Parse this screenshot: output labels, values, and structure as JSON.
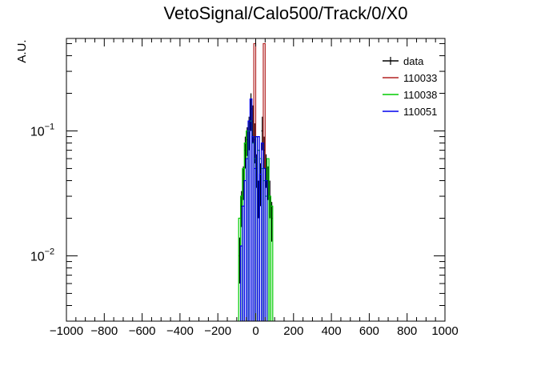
{
  "chart_data": {
    "type": "line",
    "title": "VetoSignal/Calo500/Track/0/X0",
    "xlabel": "",
    "ylabel": "A.U.",
    "xlim": [
      -1000,
      1000
    ],
    "ylim": [
      0.003,
      0.55
    ],
    "yscale": "log",
    "grid": false,
    "legend_position": "top-right",
    "x_ticks": [
      -1000,
      -800,
      -600,
      -400,
      -200,
      0,
      200,
      400,
      600,
      800,
      1000
    ],
    "x_tick_labels": [
      "−1000",
      "−800",
      "−600",
      "−400",
      "−200",
      "0",
      "200",
      "400",
      "600",
      "800",
      "1000"
    ],
    "y_ticks": [
      {
        "value": 0.01,
        "base": "10",
        "exp": "−2"
      },
      {
        "value": 0.1,
        "base": "10",
        "exp": "−1"
      }
    ],
    "bin_width": 10,
    "series": [
      {
        "name": "data",
        "color": "#000000",
        "style": "errorbar",
        "points": [
          {
            "x": -85,
            "y": 0.01,
            "err": 0.004
          },
          {
            "x": -75,
            "y": 0.025,
            "err": 0.008
          },
          {
            "x": -65,
            "y": 0.04,
            "err": 0.012
          },
          {
            "x": -55,
            "y": 0.07,
            "err": 0.02
          },
          {
            "x": -45,
            "y": 0.085,
            "err": 0.022
          },
          {
            "x": -35,
            "y": 0.1,
            "err": 0.03
          },
          {
            "x": -25,
            "y": 0.15,
            "err": 0.05
          },
          {
            "x": -15,
            "y": 0.12,
            "err": 0.04
          },
          {
            "x": -5,
            "y": 0.085,
            "err": 0.03
          },
          {
            "x": 5,
            "y": 0.05,
            "err": 0.015
          },
          {
            "x": 15,
            "y": 0.03,
            "err": 0.01
          },
          {
            "x": 25,
            "y": 0.04,
            "err": 0.015
          },
          {
            "x": 35,
            "y": 0.1,
            "err": 0.03
          },
          {
            "x": 45,
            "y": 0.07,
            "err": 0.02
          },
          {
            "x": 55,
            "y": 0.05,
            "err": 0.015
          },
          {
            "x": 65,
            "y": 0.04,
            "err": 0.012
          },
          {
            "x": 75,
            "y": 0.03,
            "err": 0.01
          },
          {
            "x": 85,
            "y": 0.02,
            "err": 0.007
          }
        ]
      },
      {
        "name": "110033",
        "color": "#b22222",
        "style": "step",
        "bins": [
          {
            "x": -5,
            "y": 0.5
          },
          {
            "x": 45,
            "y": 0.5
          }
        ]
      },
      {
        "name": "110038",
        "color": "#00cc00",
        "style": "step",
        "bins": [
          {
            "x": -85,
            "y": 0.02
          },
          {
            "x": -75,
            "y": 0.03
          },
          {
            "x": -65,
            "y": 0.05
          },
          {
            "x": -55,
            "y": 0.08
          },
          {
            "x": -45,
            "y": 0.1
          },
          {
            "x": -35,
            "y": 0.1
          },
          {
            "x": -25,
            "y": 0.12
          },
          {
            "x": -15,
            "y": 0.08
          },
          {
            "x": -5,
            "y": 0.06
          },
          {
            "x": 5,
            "y": 0.09
          },
          {
            "x": 15,
            "y": 0.07
          },
          {
            "x": 25,
            "y": 0.06
          },
          {
            "x": 35,
            "y": 0.05
          },
          {
            "x": 45,
            "y": 0.04
          },
          {
            "x": 55,
            "y": 0.03
          },
          {
            "x": 65,
            "y": 0.06
          },
          {
            "x": 75,
            "y": 0.03
          },
          {
            "x": 85,
            "y": 0.025
          }
        ]
      },
      {
        "name": "110051",
        "color": "#0000ee",
        "style": "step",
        "bins": [
          {
            "x": -75,
            "y": 0.012
          },
          {
            "x": -65,
            "y": 0.025
          },
          {
            "x": -55,
            "y": 0.04
          },
          {
            "x": -45,
            "y": 0.06
          },
          {
            "x": -35,
            "y": 0.12
          },
          {
            "x": -25,
            "y": 0.18
          },
          {
            "x": -15,
            "y": 0.09
          },
          {
            "x": -5,
            "y": 0.05
          },
          {
            "x": 5,
            "y": 0.09
          },
          {
            "x": 15,
            "y": 0.09
          },
          {
            "x": 25,
            "y": 0.045
          },
          {
            "x": 35,
            "y": 0.08
          },
          {
            "x": 45,
            "y": 0.05
          },
          {
            "x": 55,
            "y": 0.04
          }
        ]
      }
    ]
  }
}
